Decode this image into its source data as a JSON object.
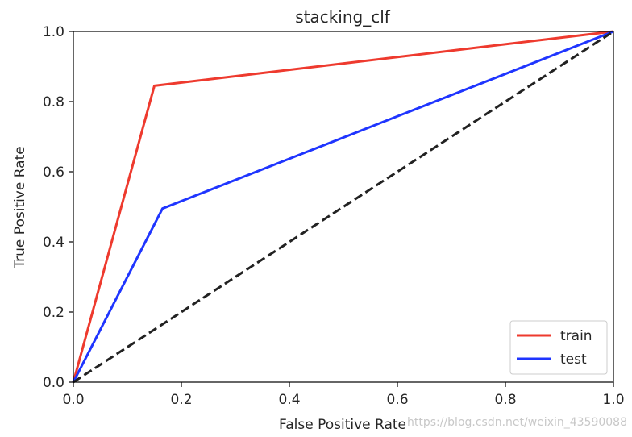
{
  "chart_data": {
    "type": "line",
    "title": "stacking_clf",
    "xlabel": "False Positive Rate",
    "ylabel": "True Positive Rate",
    "xlim": [
      0,
      1
    ],
    "ylim": [
      0,
      1
    ],
    "xticks": [
      0.0,
      0.2,
      0.4,
      0.6,
      0.8,
      1.0
    ],
    "yticks": [
      0.0,
      0.2,
      0.4,
      0.6,
      0.8,
      1.0
    ],
    "xtick_labels": [
      "0.0",
      "0.2",
      "0.4",
      "0.6",
      "0.8",
      "1.0"
    ],
    "ytick_labels": [
      "0.0",
      "0.2",
      "0.4",
      "0.6",
      "0.8",
      "1.0"
    ],
    "grid": false,
    "legend_position": "lower-right",
    "series": [
      {
        "name": "train",
        "color": "#ee3a2e",
        "style": "solid",
        "x": [
          0.0,
          0.15,
          1.0
        ],
        "y": [
          0.0,
          0.845,
          1.0
        ]
      },
      {
        "name": "test",
        "color": "#1f35ff",
        "style": "solid",
        "x": [
          0.0,
          0.165,
          1.0
        ],
        "y": [
          0.0,
          0.495,
          1.0
        ]
      },
      {
        "name": "",
        "color": "#222222",
        "style": "dashed",
        "x": [
          0.0,
          1.0
        ],
        "y": [
          0.0,
          1.0
        ]
      }
    ]
  },
  "watermark": "https://blog.csdn.net/weixin_43590088"
}
